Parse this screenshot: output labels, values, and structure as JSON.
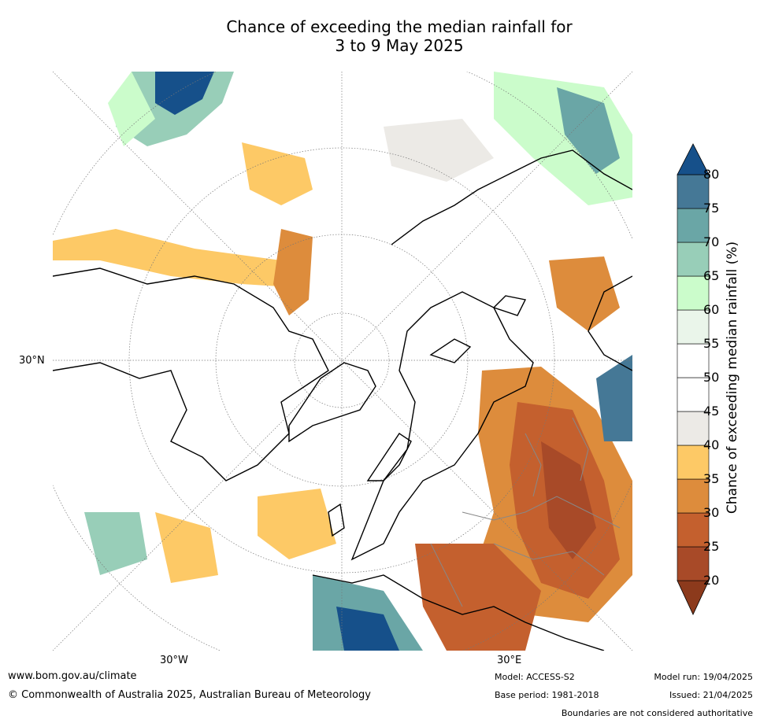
{
  "title": {
    "line1": "Chance of exceeding the median rainfall for",
    "line2": "3 to 9 May 2025"
  },
  "map": {
    "projection": "north-polar-stereographic",
    "lon_labels": [
      "30°W",
      "30°E"
    ],
    "lat_labels": [
      "30°N"
    ],
    "features": [
      "land-coastlines",
      "national-boundaries",
      "graticule"
    ]
  },
  "colorbar": {
    "label": "Chance of exceeding median rainfall (%)",
    "ticks": [
      "20",
      "25",
      "30",
      "35",
      "40",
      "45",
      "50",
      "55",
      "60",
      "65",
      "70",
      "75",
      "80"
    ],
    "bins": [
      {
        "range": "<20",
        "color": "#8c3a1c"
      },
      {
        "range": "20-25",
        "color": "#a84a28"
      },
      {
        "range": "25-30",
        "color": "#c4602e"
      },
      {
        "range": "30-35",
        "color": "#dd8c3c"
      },
      {
        "range": "35-40",
        "color": "#fdc966"
      },
      {
        "range": "40-45",
        "color": "#eceae6"
      },
      {
        "range": "45-50",
        "color": "#ffffff"
      },
      {
        "range": "50-55",
        "color": "#ffffff"
      },
      {
        "range": "55-60",
        "color": "#eaf5ea"
      },
      {
        "range": "60-65",
        "color": "#cbfccb"
      },
      {
        "range": "65-70",
        "color": "#98ceb8"
      },
      {
        "range": "70-75",
        "color": "#6aa6a6"
      },
      {
        "range": "75-80",
        "color": "#457896"
      },
      {
        "range": ">80",
        "color": "#16508a"
      }
    ]
  },
  "footer": {
    "website": "www.bom.gov.au/climate",
    "copyright": "© Commonwealth of Australia 2025, Australian Bureau of Meteorology",
    "model": "Model: ACCESS-S2",
    "base_period": "Base period: 1981-2018",
    "model_run": "Model run: 19/04/2025",
    "issued": "Issued: 21/04/2025",
    "disclaimer": "Boundaries are not considered authoritative"
  }
}
